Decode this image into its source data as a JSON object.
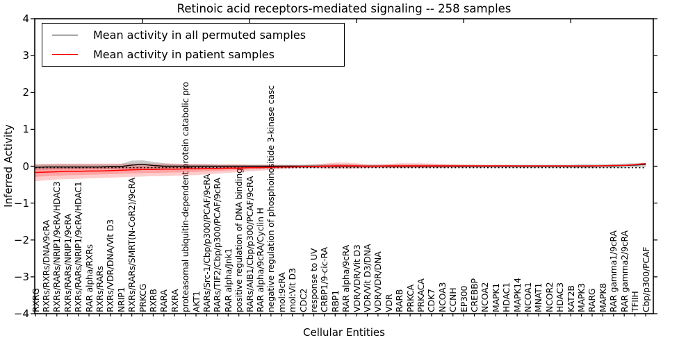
{
  "figure": {
    "title": "Retinoic acid receptors-mediated signaling -- 258 samples",
    "x_axis_label": "Cellular Entities",
    "y_axis_label": "Inferred Activity",
    "y_tick_labels": [
      "4",
      "3",
      "2",
      "1",
      "0",
      "−1",
      "−2",
      "−3",
      "−4"
    ]
  },
  "legend": {
    "items": [
      {
        "label": "Mean activity in all permuted samples",
        "color": "#000000"
      },
      {
        "label": "Mean activity in patient samples",
        "color": "#ff0000"
      }
    ]
  },
  "chart_data": {
    "type": "line",
    "title": "Retinoic acid receptors-mediated signaling -- 258 samples",
    "xlabel": "Cellular Entities",
    "ylabel": "Inferred Activity",
    "ylim": [
      -4,
      4
    ],
    "y_ticks": [
      4,
      3,
      2,
      1,
      0,
      -1,
      -2,
      -3,
      -4
    ],
    "x_major_tick_every": 10,
    "grid": false,
    "legend_position": "upper left",
    "categories": [
      "RXRG",
      "RXRs/RXRs/DNA/9cRA",
      "RXRs/RARs/NRIP1/9cRA/HDAC3",
      "RXRs/RARs/NRIP1/9cRA",
      "RXRs/RARs/NRIP1/9cRA/HDAC1",
      "RAR alpha/RXRs",
      "RXRs/RARs",
      "RXRs/VDR/DNA/Vit D3",
      "NRIP1",
      "RXRs/RARs/SMRT(N-CoR2)/9cRA",
      "PRKCG",
      "RXRB",
      "RARA",
      "RXRA",
      "proteasomal ubiquitin-dependent protein catabolic pro",
      "AKT1",
      "RARs/Src-1/Cbp/p300/PCAF/9cRA",
      "RARs/TIF2/Cbp/p300/PCAF/9cRA",
      "RAR alpha/Jnk1",
      "positive regulation of DNA binding",
      "RARs/AIB1/Cbp/p300/PCAF/9cRA",
      "RAR alpha/9cRA/Cyclin H",
      "negative regulation of phosphoinositide 3-kinase casc",
      "mol:9cRA",
      "mol:Vit D3",
      "CDC2",
      "response to UV",
      "CRBP1/9-cic-RA",
      "RBP1",
      "RAR alpha/9cRA",
      "VDR/VDR/Vit D3",
      "VDR/Vit D3/DNA",
      "VDR/VDR/DNA",
      "VDR",
      "RARB",
      "PRKCA",
      "PRKACA",
      "CDK7",
      "NCOA3",
      "CCNH",
      "EP300",
      "CREBBP",
      "NCOA2",
      "MAPK1",
      "HDAC1",
      "MAPK14",
      "NCOA1",
      "MNAT1",
      "NCOR2",
      "HDAC3",
      "KAT2B",
      "MAPK3",
      "RARG",
      "MAPK8",
      "RAR gamma1/9cRA",
      "RAR gamma2/9cRA",
      "TFIIH",
      "Cbp/p300/PCAF"
    ],
    "series": [
      {
        "name": "Mean activity in all permuted samples",
        "color": "#000000",
        "values": [
          -0.03,
          -0.02,
          -0.02,
          -0.02,
          -0.02,
          -0.02,
          -0.02,
          -0.01,
          -0.01,
          0.03,
          0.05,
          0.02,
          0.0,
          0.0,
          0.0,
          0.0,
          0.0,
          0.0,
          0.0,
          0.0,
          0.0,
          0.0,
          0.0,
          0.0,
          0.0,
          0.0,
          0.0,
          0.0,
          0.0,
          0.0,
          0.0,
          0.0,
          0.0,
          0.0,
          0.0,
          0.0,
          0.0,
          0.0,
          0.0,
          0.0,
          0.0,
          0.0,
          0.0,
          0.0,
          0.0,
          0.0,
          0.0,
          0.0,
          0.0,
          0.0,
          0.0,
          0.0,
          0.0,
          0.01,
          0.01,
          0.02,
          0.03,
          0.05
        ]
      },
      {
        "name": "Mean activity in patient samples",
        "color": "#ff0000",
        "values": [
          -0.17,
          -0.16,
          -0.15,
          -0.14,
          -0.14,
          -0.13,
          -0.13,
          -0.12,
          -0.11,
          -0.1,
          -0.09,
          -0.09,
          -0.08,
          -0.08,
          -0.07,
          -0.07,
          -0.06,
          -0.06,
          -0.05,
          -0.05,
          -0.04,
          -0.04,
          -0.03,
          -0.02,
          -0.02,
          -0.01,
          -0.01,
          0.0,
          0.01,
          0.01,
          0.01,
          0.0,
          0.0,
          0.01,
          0.01,
          0.01,
          0.01,
          0.01,
          0.01,
          0.01,
          0.01,
          0.01,
          0.01,
          0.01,
          0.01,
          0.01,
          0.01,
          0.01,
          0.01,
          0.01,
          0.01,
          0.01,
          0.01,
          0.01,
          0.02,
          0.02,
          0.04,
          0.07
        ]
      }
    ],
    "bands": [
      {
        "name": "permuted samples range",
        "color": "rgba(120,120,120,0.40)",
        "upper": [
          0.04,
          0.05,
          0.05,
          0.05,
          0.05,
          0.05,
          0.05,
          0.05,
          0.06,
          0.15,
          0.16,
          0.12,
          0.08,
          0.06,
          0.05,
          0.05,
          0.05,
          0.04,
          0.04,
          0.04,
          0.04,
          0.04,
          0.04,
          0.04,
          0.04,
          0.04,
          0.05,
          0.05,
          0.05,
          0.05,
          0.04,
          0.04,
          0.04,
          0.04,
          0.04,
          0.04,
          0.04,
          0.04,
          0.04,
          0.04,
          0.04,
          0.04,
          0.04,
          0.04,
          0.04,
          0.04,
          0.04,
          0.04,
          0.04,
          0.04,
          0.04,
          0.05,
          0.05,
          0.05,
          0.06,
          0.07,
          0.08,
          0.09
        ],
        "lower": [
          -0.1,
          -0.09,
          -0.08,
          -0.08,
          -0.08,
          -0.07,
          -0.07,
          -0.07,
          -0.06,
          -0.07,
          -0.06,
          -0.06,
          -0.06,
          -0.05,
          -0.05,
          -0.05,
          -0.05,
          -0.04,
          -0.04,
          -0.04,
          -0.04,
          -0.04,
          -0.04,
          -0.04,
          -0.04,
          -0.04,
          -0.04,
          -0.04,
          -0.04,
          -0.04,
          -0.04,
          -0.04,
          -0.04,
          -0.04,
          -0.04,
          -0.04,
          -0.04,
          -0.04,
          -0.04,
          -0.04,
          -0.04,
          -0.04,
          -0.04,
          -0.04,
          -0.04,
          -0.04,
          -0.04,
          -0.04,
          -0.04,
          -0.04,
          -0.04,
          -0.05,
          -0.05,
          -0.04,
          -0.04,
          -0.04,
          -0.03,
          -0.02
        ]
      },
      {
        "name": "patient samples range",
        "color": "rgba(255,0,0,0.20)",
        "upper": [
          0.06,
          0.06,
          0.07,
          0.07,
          0.07,
          0.07,
          0.07,
          0.07,
          0.07,
          0.07,
          0.07,
          0.07,
          0.07,
          0.07,
          0.06,
          0.06,
          0.06,
          0.05,
          0.05,
          0.05,
          0.04,
          0.04,
          0.04,
          0.03,
          0.03,
          0.03,
          0.04,
          0.07,
          0.1,
          0.1,
          0.08,
          0.05,
          0.05,
          0.06,
          0.08,
          0.08,
          0.08,
          0.07,
          0.06,
          0.05,
          0.04,
          0.04,
          0.03,
          0.03,
          0.03,
          0.02,
          0.02,
          0.02,
          0.02,
          0.02,
          0.02,
          0.02,
          0.02,
          0.02,
          0.03,
          0.04,
          0.06,
          0.1
        ],
        "lower": [
          -0.41,
          -0.38,
          -0.36,
          -0.35,
          -0.34,
          -0.33,
          -0.32,
          -0.31,
          -0.3,
          -0.29,
          -0.28,
          -0.27,
          -0.27,
          -0.26,
          -0.25,
          -0.24,
          -0.22,
          -0.2,
          -0.18,
          -0.16,
          -0.14,
          -0.12,
          -0.1,
          -0.08,
          -0.06,
          -0.05,
          -0.05,
          -0.06,
          -0.07,
          -0.07,
          -0.06,
          -0.05,
          -0.04,
          -0.04,
          -0.05,
          -0.05,
          -0.05,
          -0.04,
          -0.04,
          -0.03,
          -0.03,
          -0.02,
          -0.02,
          -0.01,
          -0.01,
          -0.01,
          0.0,
          0.0,
          0.0,
          0.0,
          0.0,
          0.0,
          0.0,
          0.0,
          0.0,
          0.01,
          0.02,
          0.03
        ]
      }
    ],
    "reference_line": {
      "y": -0.04,
      "style": "dotted",
      "color": "#000000"
    }
  }
}
